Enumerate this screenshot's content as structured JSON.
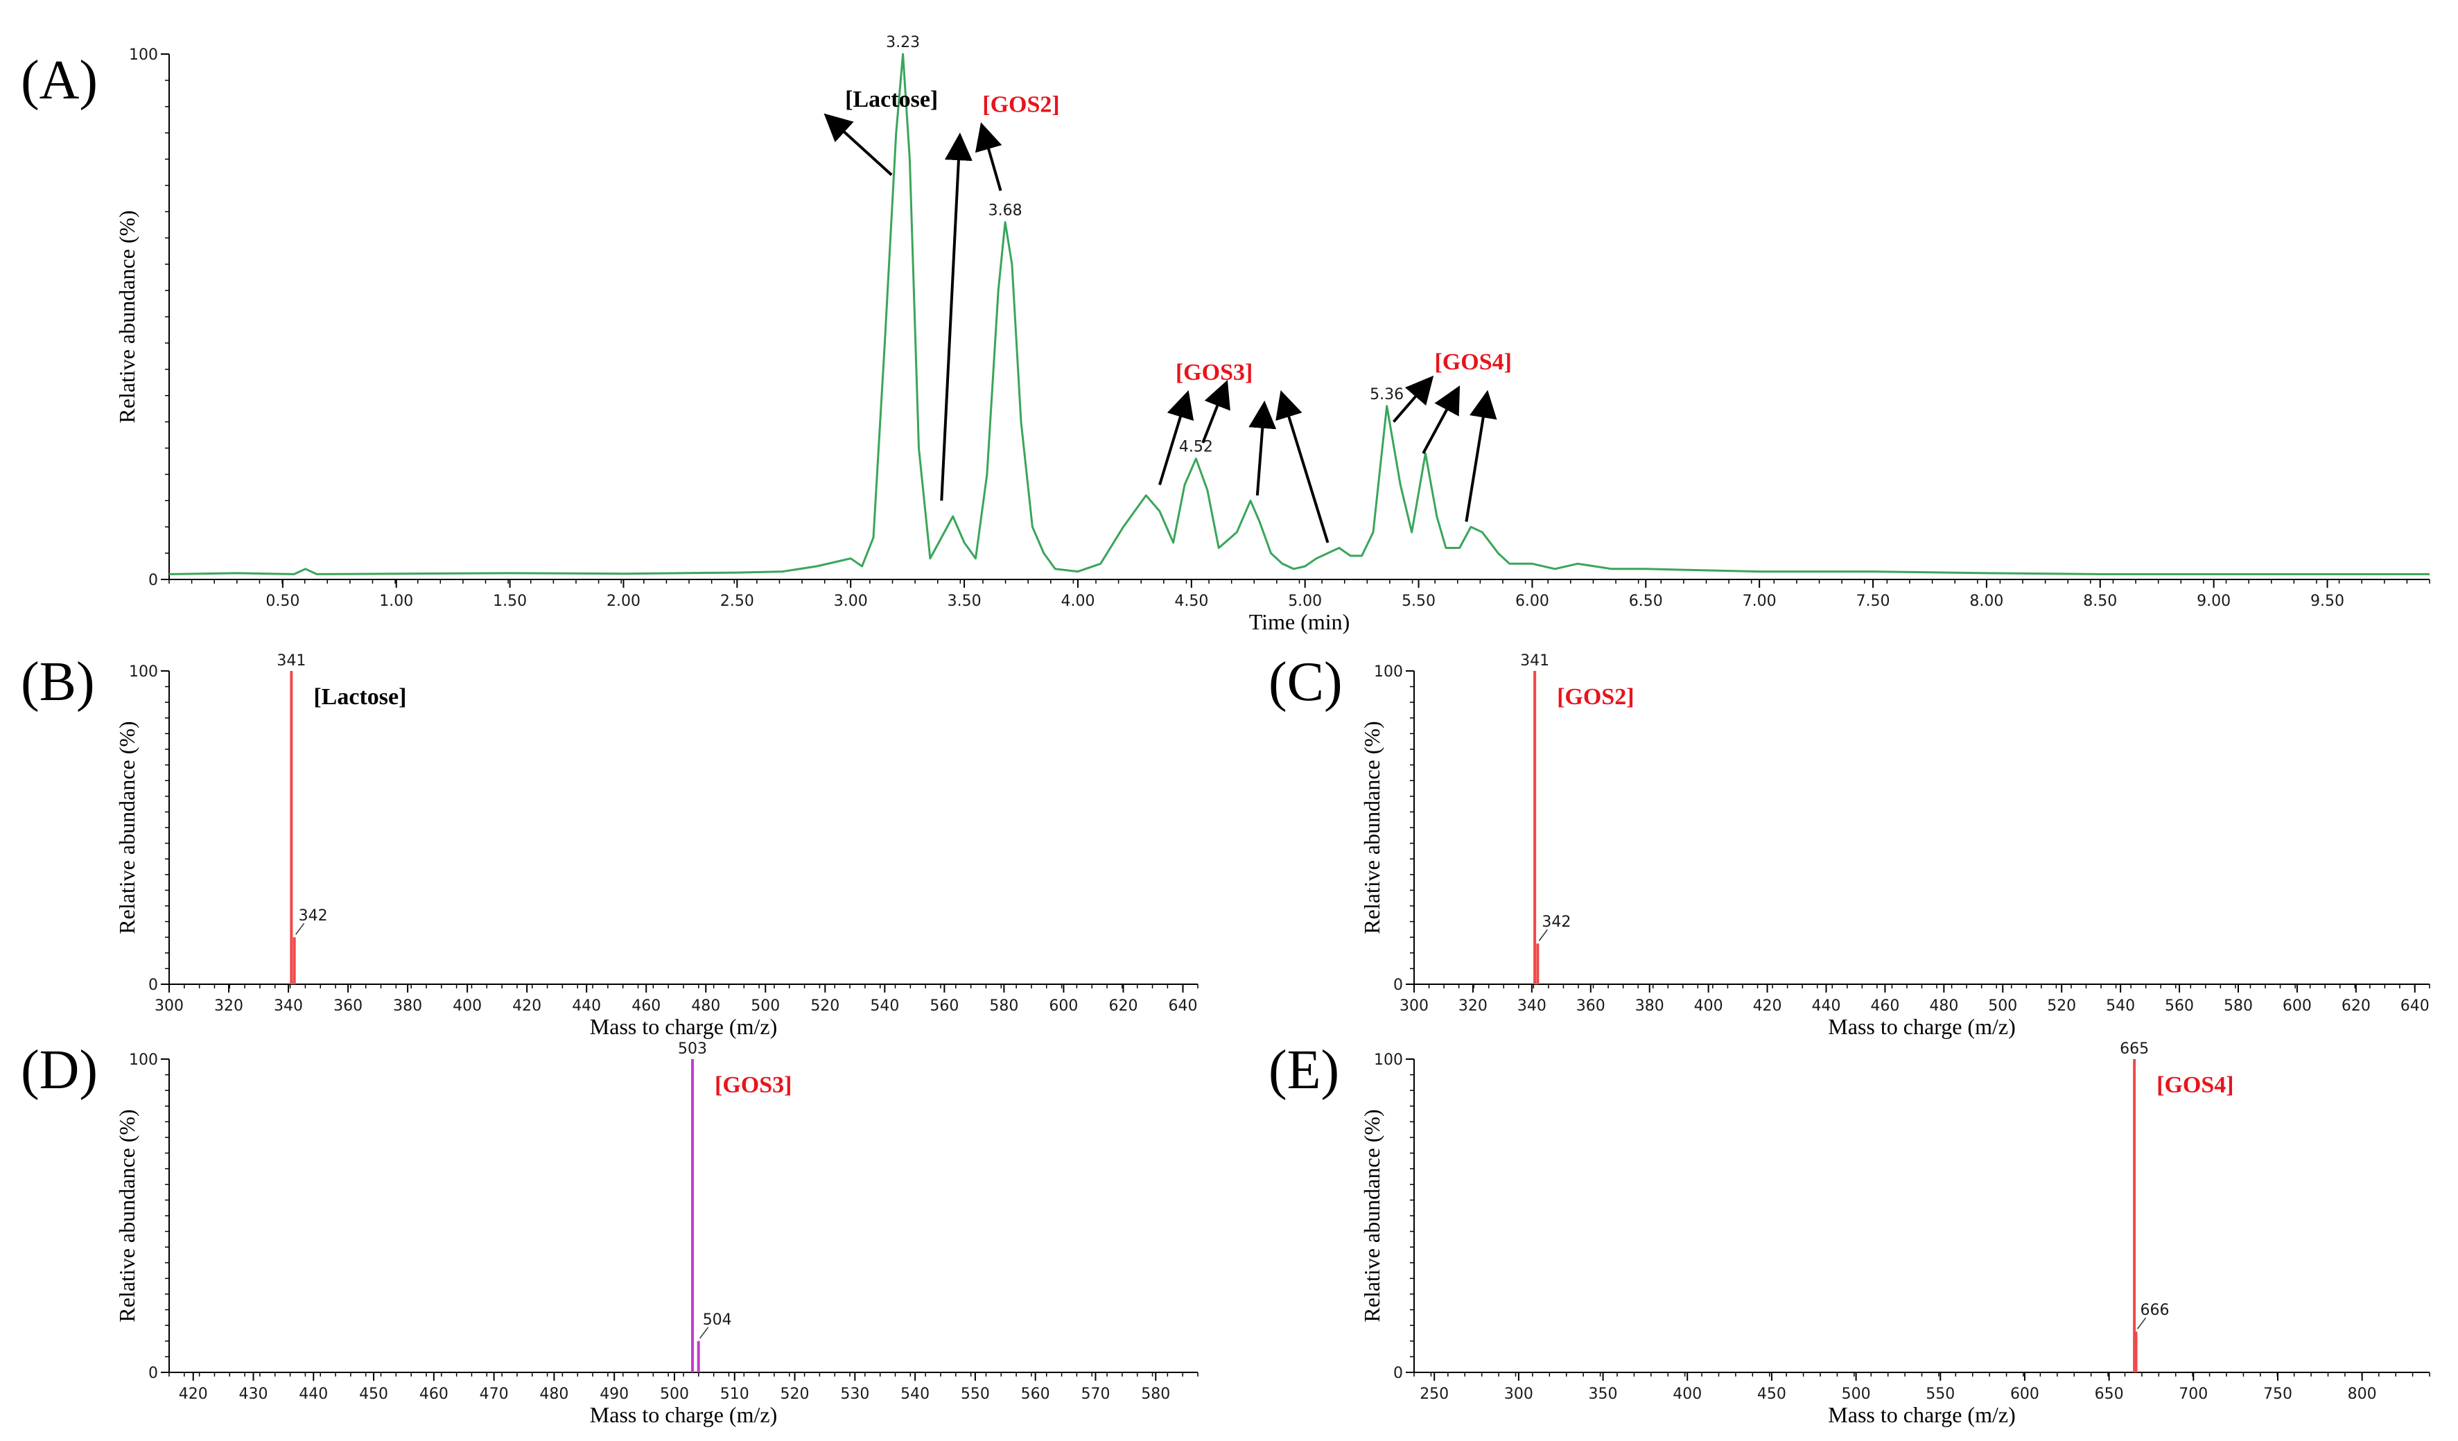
{
  "chart_data": [
    {
      "id": "A",
      "panel_label": "(A)",
      "type": "line",
      "xlabel": "Time (min)",
      "ylabel": "Relative abundance (%)",
      "xlim": [
        0.0,
        9.95
      ],
      "ylim": [
        0,
        100
      ],
      "xticks": [
        "0.50",
        "1.00",
        "1.50",
        "2.00",
        "2.50",
        "3.00",
        "3.50",
        "4.00",
        "4.50",
        "5.00",
        "5.50",
        "6.00",
        "6.50",
        "7.00",
        "7.50",
        "8.00",
        "8.50",
        "9.00",
        "9.50"
      ],
      "yticks": [
        "0",
        "100"
      ],
      "color": "#3aa55a",
      "series": [
        {
          "x": [
            0.0,
            0.3,
            0.55,
            0.6,
            0.65,
            1.0,
            1.5,
            2.0,
            2.5,
            2.7,
            2.85,
            2.95,
            3.0,
            3.05,
            3.1,
            3.15,
            3.2,
            3.23,
            3.26,
            3.3,
            3.35,
            3.4,
            3.45,
            3.5,
            3.55,
            3.6,
            3.65,
            3.68,
            3.71,
            3.75,
            3.8,
            3.85,
            3.9,
            4.0,
            4.1,
            4.2,
            4.3,
            4.36,
            4.42,
            4.47,
            4.52,
            4.57,
            4.62,
            4.7,
            4.76,
            4.8,
            4.85,
            4.9,
            4.95,
            5.0,
            5.05,
            5.1,
            5.15,
            5.2,
            5.25,
            5.3,
            5.36,
            5.42,
            5.47,
            5.53,
            5.58,
            5.62,
            5.68,
            5.73,
            5.78,
            5.85,
            5.9,
            6.0,
            6.1,
            6.2,
            6.35,
            6.5,
            7.0,
            7.5,
            8.0,
            8.5,
            9.0,
            9.5,
            9.95
          ],
          "y": [
            1,
            1.2,
            1,
            2,
            1,
            1.1,
            1.2,
            1.1,
            1.3,
            1.5,
            2.5,
            3.5,
            4,
            2.5,
            8,
            45,
            85,
            100,
            80,
            25,
            4,
            8,
            12,
            7,
            4,
            20,
            55,
            68,
            60,
            30,
            10,
            5,
            2,
            1.5,
            3,
            10,
            16,
            13,
            7,
            18,
            23,
            17,
            6,
            9,
            15,
            11,
            5,
            3,
            2,
            2.5,
            4,
            5,
            6,
            4.5,
            4.5,
            9,
            33,
            18,
            9,
            24,
            12,
            6,
            6,
            10,
            9,
            5,
            3,
            3,
            2,
            3,
            2,
            2,
            1.5,
            1.5,
            1.2,
            1,
            1,
            1,
            1
          ]
        }
      ],
      "peak_labels": [
        {
          "x": 3.23,
          "text": "3.23"
        },
        {
          "x": 3.68,
          "text": "3.68"
        },
        {
          "x": 4.52,
          "text": "4.52"
        },
        {
          "x": 5.36,
          "text": "5.36"
        }
      ],
      "annotations": [
        {
          "text": "[Lactose]",
          "color": "#000000",
          "x": 3.18,
          "y": 90,
          "arrows": [
            {
              "x1": 3.18,
              "y1": 77,
              "x2": 2.9,
              "y2": 88
            }
          ]
        },
        {
          "text": "[GOS2]",
          "color": "#e8141c",
          "x": 3.75,
          "y": 89,
          "arrows": [
            {
              "x1": 3.4,
              "y1": 15,
              "x2": 3.48,
              "y2": 84
            },
            {
              "x1": 3.66,
              "y1": 74,
              "x2": 3.58,
              "y2": 86
            }
          ]
        },
        {
          "text": "[GOS3]",
          "color": "#e8141c",
          "x": 4.6,
          "y": 38,
          "arrows": [
            {
              "x1": 4.36,
              "y1": 18,
              "x2": 4.48,
              "y2": 35
            },
            {
              "x1": 4.55,
              "y1": 26,
              "x2": 4.65,
              "y2": 37
            },
            {
              "x1": 4.79,
              "y1": 16,
              "x2": 4.82,
              "y2": 33
            },
            {
              "x1": 5.1,
              "y1": 7,
              "x2": 4.9,
              "y2": 35
            }
          ]
        },
        {
          "text": "[GOS4]",
          "color": "#e8141c",
          "x": 5.74,
          "y": 40,
          "arrows": [
            {
              "x1": 5.39,
              "y1": 30,
              "x2": 5.55,
              "y2": 38
            },
            {
              "x1": 5.52,
              "y1": 24,
              "x2": 5.67,
              "y2": 36
            },
            {
              "x1": 5.71,
              "y1": 11,
              "x2": 5.8,
              "y2": 35
            }
          ]
        }
      ]
    },
    {
      "id": "B",
      "panel_label": "(B)",
      "type": "bar",
      "xlabel": "Mass to charge (m/z)",
      "ylabel": "Relative abundance (%)",
      "xlim": [
        300,
        645
      ],
      "ylim": [
        0,
        100
      ],
      "xticks": [
        "300",
        "320",
        "340",
        "360",
        "380",
        "400",
        "420",
        "440",
        "460",
        "480",
        "500",
        "520",
        "540",
        "560",
        "580",
        "600",
        "620",
        "640"
      ],
      "yticks": [
        "0",
        "100"
      ],
      "color": "#ef4a4a",
      "peaks": [
        {
          "mz": 341,
          "value": 100,
          "label": "341"
        },
        {
          "mz": 342,
          "value": 15,
          "label": "342"
        }
      ],
      "annotation": {
        "text": "[Lactose]",
        "color": "#000000"
      }
    },
    {
      "id": "C",
      "panel_label": "(C)",
      "type": "bar",
      "xlabel": "Mass to charge (m/z)",
      "ylabel": "Relative abundance (%)",
      "xlim": [
        300,
        645
      ],
      "ylim": [
        0,
        100
      ],
      "xticks": [
        "300",
        "320",
        "340",
        "360",
        "380",
        "400",
        "420",
        "440",
        "460",
        "480",
        "500",
        "520",
        "540",
        "560",
        "580",
        "600",
        "620",
        "640"
      ],
      "yticks": [
        "0",
        "100"
      ],
      "color": "#ef4a4a",
      "peaks": [
        {
          "mz": 341,
          "value": 100,
          "label": "341"
        },
        {
          "mz": 342,
          "value": 13,
          "label": "342"
        }
      ],
      "annotation": {
        "text": "[GOS2]",
        "color": "#e8141c"
      }
    },
    {
      "id": "D",
      "panel_label": "(D)",
      "type": "bar",
      "xlabel": "Mass to charge (m/z)",
      "ylabel": "Relative abundance (%)",
      "xlim": [
        416,
        587
      ],
      "ylim": [
        0,
        100
      ],
      "xticks": [
        "420",
        "430",
        "440",
        "450",
        "460",
        "470",
        "480",
        "490",
        "500",
        "510",
        "520",
        "530",
        "540",
        "550",
        "560",
        "570",
        "580"
      ],
      "yticks": [
        "0",
        "100"
      ],
      "color": "#c23ccd",
      "peaks": [
        {
          "mz": 503,
          "value": 100,
          "label": "503"
        },
        {
          "mz": 504,
          "value": 10,
          "label": "504"
        }
      ],
      "annotation": {
        "text": "[GOS3]",
        "color": "#e8141c"
      }
    },
    {
      "id": "E",
      "panel_label": "(E)",
      "type": "bar",
      "xlabel": "Mass to charge (m/z)",
      "ylabel": "Relative abundance (%)",
      "xlim": [
        238,
        840
      ],
      "ylim": [
        0,
        100
      ],
      "xticks": [
        "250",
        "300",
        "350",
        "400",
        "450",
        "500",
        "550",
        "600",
        "650",
        "700",
        "750",
        "800"
      ],
      "yticks": [
        "0",
        "100"
      ],
      "color": "#ef4a4a",
      "peaks": [
        {
          "mz": 665,
          "value": 100,
          "label": "665"
        },
        {
          "mz": 666,
          "value": 13,
          "label": "666"
        }
      ],
      "annotation": {
        "text": "[GOS4]",
        "color": "#e8141c"
      }
    }
  ]
}
